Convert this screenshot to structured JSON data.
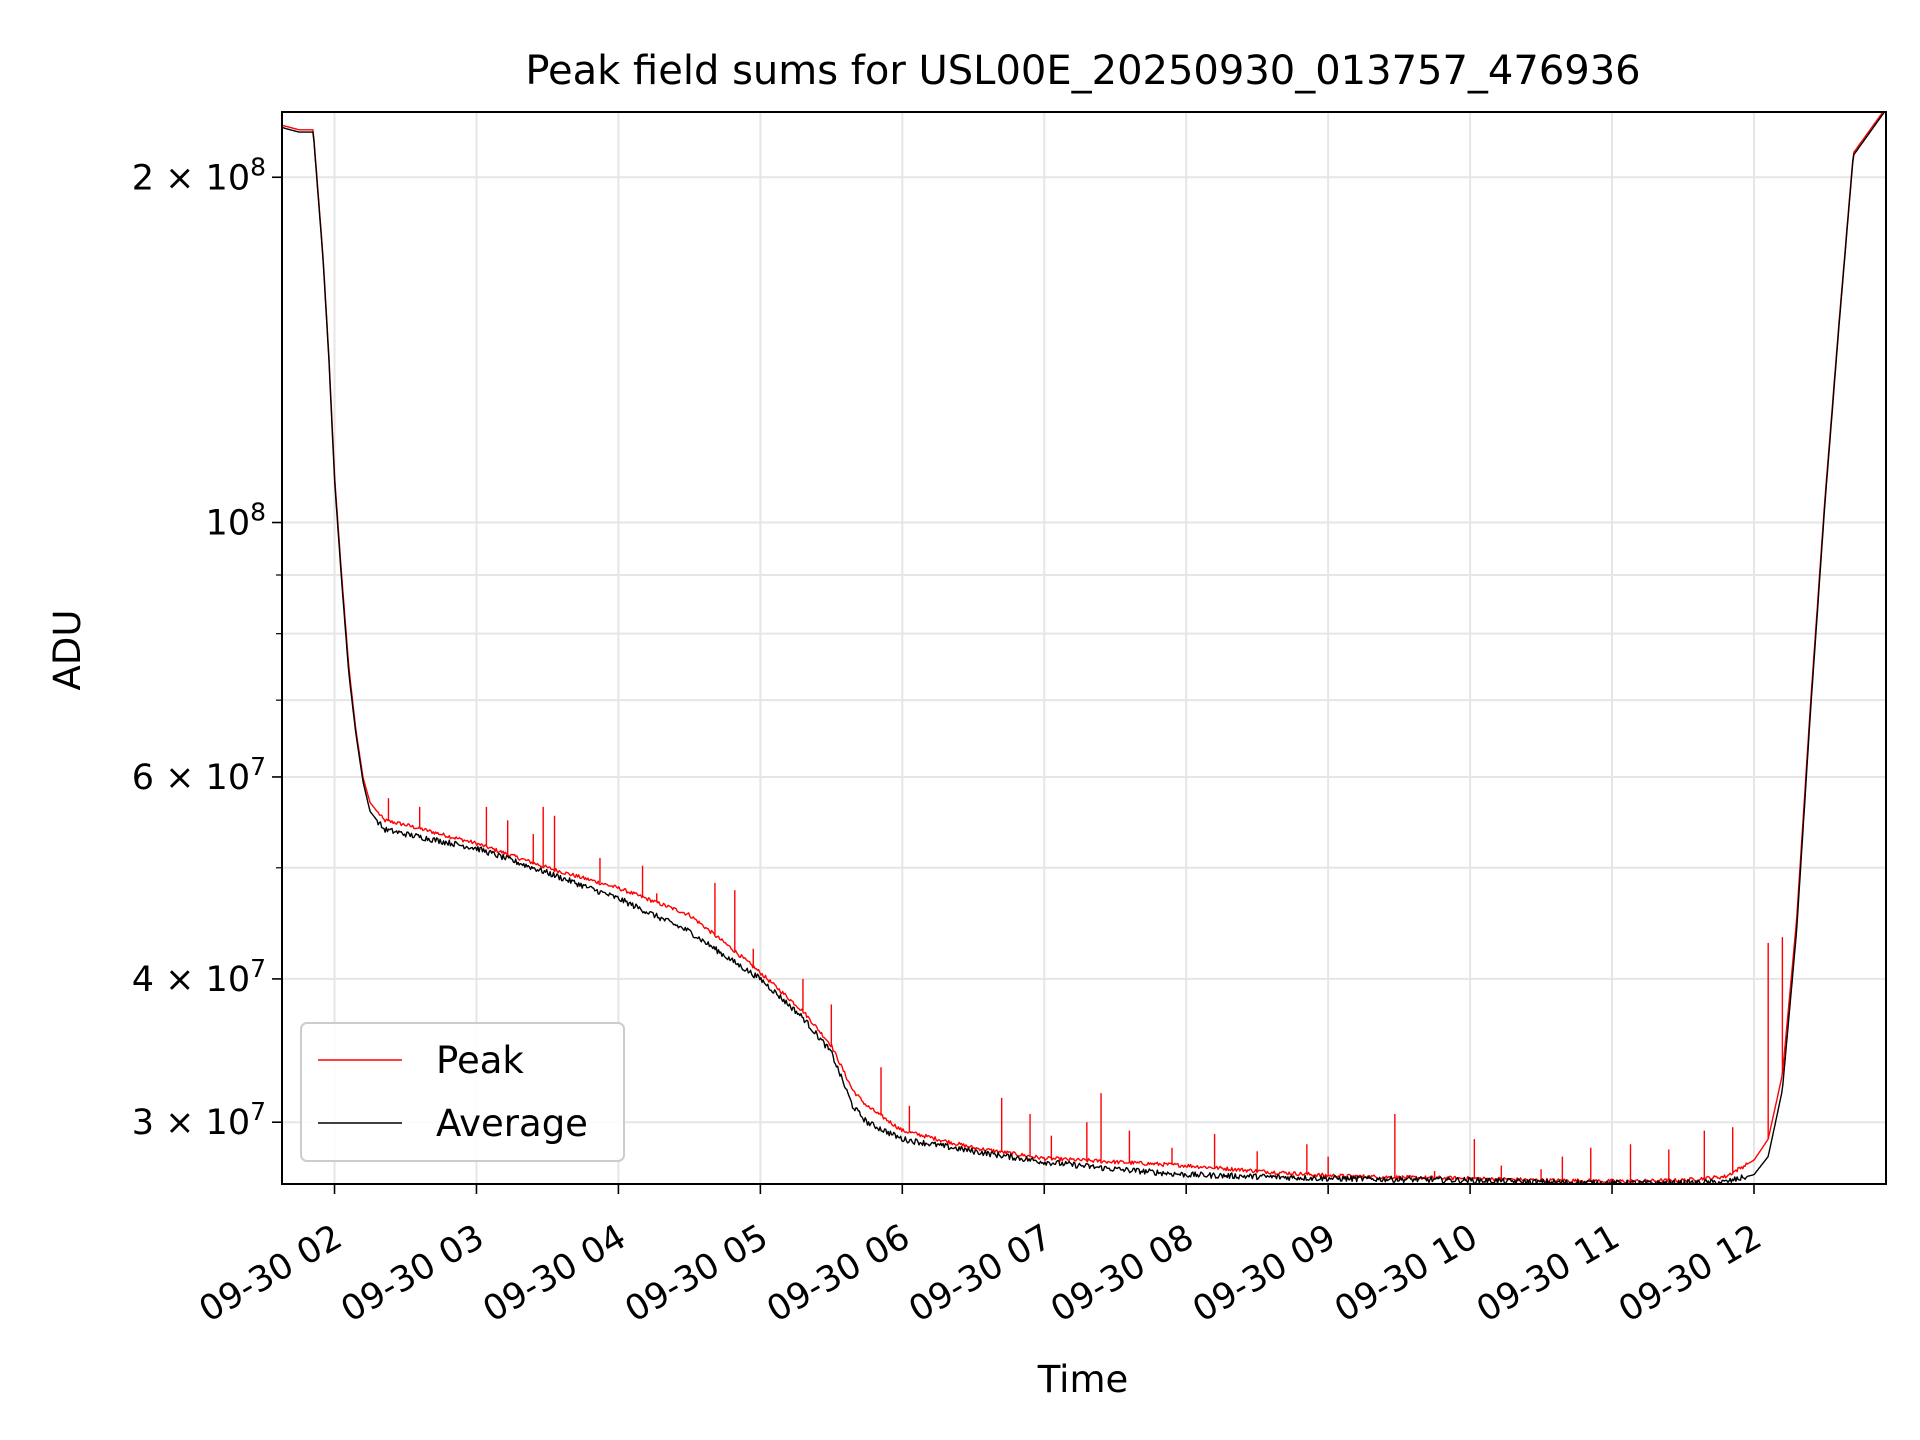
{
  "chart_data": {
    "type": "line",
    "title": "Peak field sums for USL00E_20250930_013757_476936",
    "xlabel": "Time",
    "ylabel": "ADU",
    "yscale": "log",
    "ylim": [
      26500000,
      228000000
    ],
    "xlim": [
      1.63,
      12.93
    ],
    "grid": true,
    "legend_position": "lower-left",
    "x_ticks": [
      {
        "value": 2,
        "label": "09-30 02"
      },
      {
        "value": 3,
        "label": "09-30 03"
      },
      {
        "value": 4,
        "label": "09-30 04"
      },
      {
        "value": 5,
        "label": "09-30 05"
      },
      {
        "value": 6,
        "label": "09-30 06"
      },
      {
        "value": 7,
        "label": "09-30 07"
      },
      {
        "value": 8,
        "label": "09-30 08"
      },
      {
        "value": 9,
        "label": "09-30 09"
      },
      {
        "value": 10,
        "label": "09-30 10"
      },
      {
        "value": 11,
        "label": "09-30 11"
      },
      {
        "value": 12,
        "label": "09-30 12"
      }
    ],
    "y_ticks_major": [
      {
        "value": 30000000,
        "label_base": "3 × 10",
        "label_exp": "7"
      },
      {
        "value": 40000000,
        "label_base": "4 × 10",
        "label_exp": "7"
      },
      {
        "value": 60000000,
        "label_base": "6 × 10",
        "label_exp": "7"
      },
      {
        "value": 100000000,
        "label_base": "10",
        "label_exp": "8"
      },
      {
        "value": 200000000,
        "label_base": "2 × 10",
        "label_exp": "8"
      }
    ],
    "y_ticks_minor": [
      50000000,
      70000000,
      80000000,
      90000000
    ],
    "series": [
      {
        "name": "Peak",
        "color": "#ff0000",
        "x": [
          1.63,
          1.75,
          1.85,
          1.92,
          1.96,
          2.0,
          2.05,
          2.1,
          2.15,
          2.2,
          2.25,
          2.35,
          2.5,
          3.0,
          3.5,
          4.0,
          4.5,
          4.8,
          5.0,
          5.3,
          5.5,
          5.65,
          5.75,
          6.0,
          6.5,
          7.0,
          7.5,
          8.0,
          8.5,
          9.0,
          9.5,
          10.0,
          10.5,
          11.0,
          11.2,
          11.5,
          11.8,
          12.0,
          12.1,
          12.2,
          12.3,
          12.4,
          12.5,
          12.6,
          12.7,
          12.93
        ],
        "y": [
          222000000,
          220000000,
          220000000,
          170000000,
          140000000,
          110000000,
          90000000,
          75000000,
          66000000,
          60000000,
          57000000,
          55000000,
          54500000,
          52500000,
          50000000,
          48000000,
          45500000,
          42500000,
          40500000,
          37500000,
          35000000,
          32000000,
          31000000,
          29500000,
          28500000,
          27900000,
          27700000,
          27500000,
          27200000,
          26950000,
          26850000,
          26800000,
          26700000,
          26650000,
          26650000,
          26700000,
          26900000,
          27800000,
          29000000,
          33000000,
          45000000,
          70000000,
          105000000,
          150000000,
          210000000,
          230000000
        ],
        "spikes": [
          {
            "x": 2.38,
            "y": 57500000
          },
          {
            "x": 2.6,
            "y": 56500000
          },
          {
            "x": 3.07,
            "y": 56500000
          },
          {
            "x": 3.22,
            "y": 55000000
          },
          {
            "x": 3.4,
            "y": 53500000
          },
          {
            "x": 3.47,
            "y": 56500000
          },
          {
            "x": 3.55,
            "y": 55500000
          },
          {
            "x": 3.87,
            "y": 51000000
          },
          {
            "x": 4.17,
            "y": 50200000
          },
          {
            "x": 4.27,
            "y": 47500000
          },
          {
            "x": 4.68,
            "y": 48500000
          },
          {
            "x": 4.82,
            "y": 47800000
          },
          {
            "x": 4.95,
            "y": 42500000
          },
          {
            "x": 5.3,
            "y": 40000000
          },
          {
            "x": 5.5,
            "y": 38000000
          },
          {
            "x": 5.85,
            "y": 33500000
          },
          {
            "x": 6.05,
            "y": 31000000
          },
          {
            "x": 6.7,
            "y": 31500000
          },
          {
            "x": 6.9,
            "y": 30500000
          },
          {
            "x": 7.05,
            "y": 29200000
          },
          {
            "x": 7.3,
            "y": 30000000
          },
          {
            "x": 7.4,
            "y": 31800000
          },
          {
            "x": 7.6,
            "y": 29500000
          },
          {
            "x": 7.9,
            "y": 28500000
          },
          {
            "x": 8.2,
            "y": 29300000
          },
          {
            "x": 8.5,
            "y": 28300000
          },
          {
            "x": 8.85,
            "y": 28700000
          },
          {
            "x": 9.0,
            "y": 28000000
          },
          {
            "x": 9.47,
            "y": 30500000
          },
          {
            "x": 9.75,
            "y": 27200000
          },
          {
            "x": 10.03,
            "y": 29000000
          },
          {
            "x": 10.22,
            "y": 27500000
          },
          {
            "x": 10.5,
            "y": 27300000
          },
          {
            "x": 10.65,
            "y": 28000000
          },
          {
            "x": 10.85,
            "y": 28500000
          },
          {
            "x": 11.13,
            "y": 28700000
          },
          {
            "x": 11.4,
            "y": 28400000
          },
          {
            "x": 11.65,
            "y": 29500000
          },
          {
            "x": 11.85,
            "y": 29700000
          },
          {
            "x": 12.1,
            "y": 43000000
          },
          {
            "x": 12.2,
            "y": 43500000
          }
        ]
      },
      {
        "name": "Average",
        "color": "#000000",
        "x": [
          1.63,
          1.75,
          1.85,
          1.92,
          1.96,
          2.0,
          2.05,
          2.1,
          2.15,
          2.2,
          2.25,
          2.35,
          2.5,
          3.0,
          3.5,
          4.0,
          4.5,
          4.8,
          5.0,
          5.3,
          5.5,
          5.65,
          5.75,
          6.0,
          6.5,
          7.0,
          7.5,
          8.0,
          8.5,
          9.0,
          9.5,
          10.0,
          10.5,
          11.0,
          11.2,
          11.5,
          11.8,
          12.0,
          12.1,
          12.2,
          12.3,
          12.4,
          12.5,
          12.6,
          12.7,
          12.93
        ],
        "y": [
          221000000,
          219000000,
          219000000,
          169000000,
          139000000,
          109000000,
          89000000,
          74000000,
          65500000,
          59500000,
          56000000,
          54000000,
          53500000,
          52000000,
          49500000,
          47000000,
          44000000,
          41500000,
          40000000,
          37000000,
          34500000,
          31000000,
          30000000,
          29000000,
          28300000,
          27700000,
          27300000,
          27000000,
          26900000,
          26800000,
          26750000,
          26700000,
          26600000,
          26550000,
          26550000,
          26550000,
          26600000,
          27000000,
          28000000,
          32000000,
          44000000,
          69000000,
          104000000,
          149000000,
          209000000,
          229000000
        ]
      }
    ]
  }
}
